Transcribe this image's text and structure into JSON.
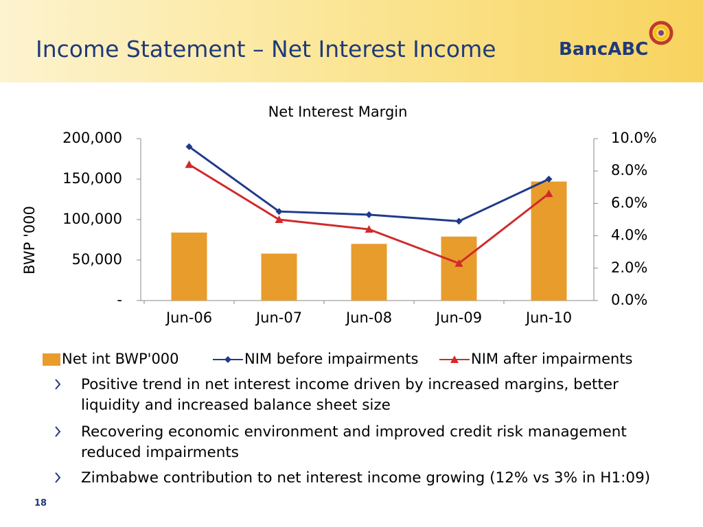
{
  "header": {
    "title": "Income Statement – Net Interest Income",
    "logo": "BancABC"
  },
  "chart_data": {
    "type": "bar_line",
    "title": "Net Interest Margin",
    "ylabel": "BWP '000",
    "categories": [
      "Jun-06",
      "Jun-07",
      "Jun-08",
      "Jun-09",
      "Jun-10"
    ],
    "series": [
      {
        "name": "Net int BWP'000",
        "type": "bar",
        "color": "#e89c2c",
        "values": [
          84000,
          58000,
          70000,
          79000,
          147000
        ]
      },
      {
        "name": "NIM before impairments",
        "type": "line",
        "axis": "y2",
        "marker": "diamond",
        "color": "#1f3a8a",
        "values": [
          9.5,
          5.5,
          5.3,
          4.9,
          7.5
        ]
      },
      {
        "name": "NIM after impairments",
        "type": "line",
        "axis": "y2",
        "marker": "triangle",
        "color": "#d02a2a",
        "values": [
          8.4,
          5.0,
          4.4,
          2.3,
          6.6
        ]
      }
    ],
    "ylim": [
      0,
      200000
    ],
    "yticks": [
      {
        "value": 0,
        "label": "-"
      },
      {
        "value": 50000,
        "label": "50,000"
      },
      {
        "value": 100000,
        "label": "100,000"
      },
      {
        "value": 150000,
        "label": "150,000"
      },
      {
        "value": 200000,
        "label": "200,000"
      }
    ],
    "y2lim": [
      0,
      10
    ],
    "y2ticks": [
      {
        "value": 0,
        "label": "0.0%"
      },
      {
        "value": 2,
        "label": "2.0%"
      },
      {
        "value": 4,
        "label": "4.0%"
      },
      {
        "value": 6,
        "label": "6.0%"
      },
      {
        "value": 8,
        "label": "8.0%"
      },
      {
        "value": 10,
        "label": "10.0%"
      }
    ],
    "grid": false,
    "legend": "bottom"
  },
  "bullets": [
    "Positive trend in net interest income driven by increased margins, better liquidity and increased balance sheet size",
    "Recovering economic environment and improved credit risk management reduced impairments",
    "Zimbabwe contribution to net interest income growing (12% vs 3% in H1:09)"
  ],
  "page_number": "18"
}
